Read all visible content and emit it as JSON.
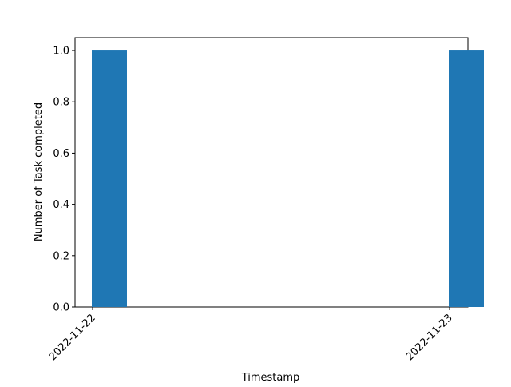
{
  "chart_data": {
    "type": "bar",
    "xlabel": "Timestamp",
    "ylabel": "Number of Task completed",
    "x": [
      "2022-11-22",
      "2022-11-23"
    ],
    "values": [
      1,
      1
    ],
    "xticks": [
      "2022-11-22",
      "2022-11-23"
    ],
    "yticks": [
      "0.0",
      "0.2",
      "0.4",
      "0.6",
      "0.8",
      "1.0"
    ],
    "ylim": [
      0,
      1.05
    ],
    "grid": false,
    "bar_color": "#1f77b4"
  }
}
